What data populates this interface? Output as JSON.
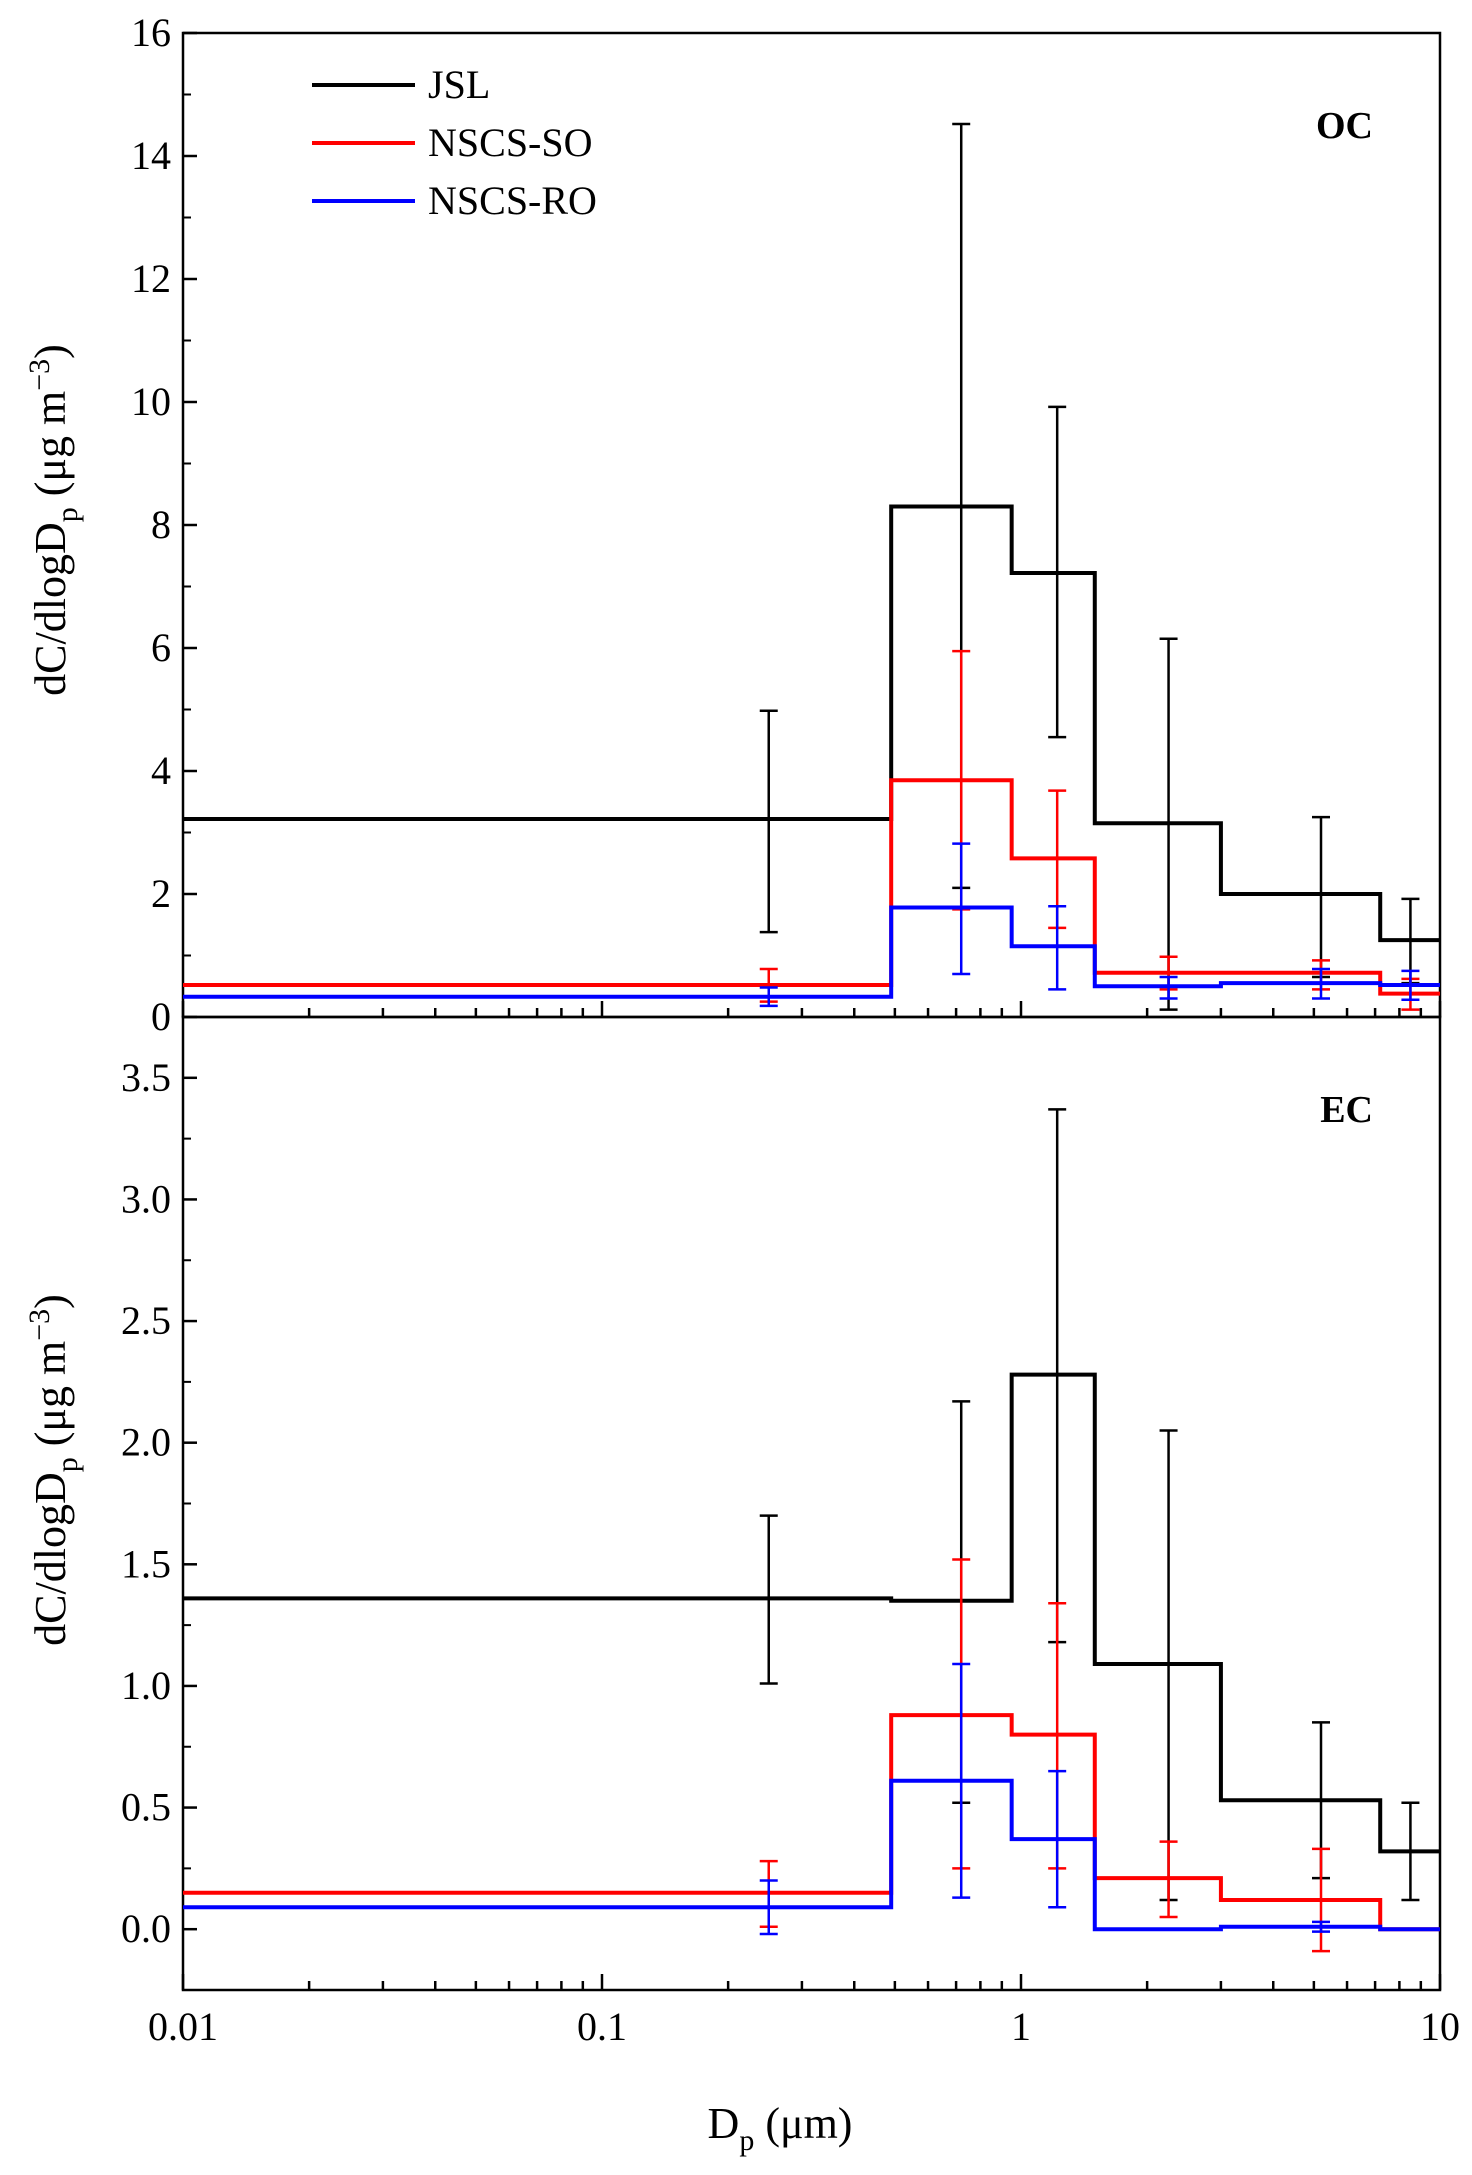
{
  "colors": {
    "JSL": "#000000",
    "NSCS-SO": "#ff0000",
    "NSCS-RO": "#0000ff"
  },
  "legend": [
    "JSL",
    "NSCS-SO",
    "NSCS-RO"
  ],
  "x_axis": {
    "ticks": [
      0.01,
      0.1,
      1,
      10
    ],
    "tick_labels": [
      "0.01",
      "0.1",
      "1",
      "10"
    ],
    "label_main": "D",
    "label_sub": "p",
    "label_rest": " (μm)"
  },
  "y_label": {
    "main": "dC/dlogD",
    "sub": "p",
    "unit_open": " (μg m",
    "unit_sup": "−3",
    "unit_close": ")"
  },
  "chart_data": [
    {
      "type": "line",
      "step": true,
      "title": "OC",
      "xlabel": "Dp (μm)",
      "ylabel": "dC/dlogDp (μg m−3)",
      "xscale": "log",
      "xlim": [
        0.01,
        10
      ],
      "ylim": [
        0,
        16
      ],
      "yticks": [
        0,
        2,
        4,
        6,
        8,
        10,
        12,
        14,
        16
      ],
      "ytick_labels": [
        "0",
        "2",
        "4",
        "6",
        "8",
        "10",
        "12",
        "14",
        "16"
      ],
      "bin_edges": [
        0.01,
        0.49,
        0.95,
        1.5,
        3.0,
        7.2,
        10
      ],
      "error_x": [
        0.25,
        0.72,
        1.22,
        2.25,
        5.2,
        8.5
      ],
      "series": [
        {
          "name": "JSL",
          "values": [
            3.22,
            8.3,
            7.22,
            3.15,
            2.0,
            1.25
          ],
          "err_low": [
            1.38,
            2.1,
            4.55,
            0.12,
            0.65,
            0.55
          ],
          "err_high": [
            4.98,
            14.52,
            9.92,
            6.15,
            3.25,
            1.92
          ]
        },
        {
          "name": "NSCS-SO",
          "values": [
            0.52,
            3.85,
            2.58,
            0.72,
            0.72,
            0.38
          ],
          "err_low": [
            0.25,
            1.75,
            1.45,
            0.45,
            0.45,
            0.12
          ],
          "err_high": [
            0.78,
            5.95,
            3.68,
            0.98,
            0.92,
            0.62
          ]
        },
        {
          "name": "NSCS-RO",
          "values": [
            0.33,
            1.78,
            1.15,
            0.5,
            0.55,
            0.52
          ],
          "err_low": [
            0.18,
            0.7,
            0.45,
            0.3,
            0.3,
            0.28
          ],
          "err_high": [
            0.48,
            2.82,
            1.8,
            0.65,
            0.78,
            0.75
          ]
        }
      ]
    },
    {
      "type": "line",
      "step": true,
      "title": "EC",
      "xlabel": "Dp (μm)",
      "ylabel": "dC/dlogDp (μg m−3)",
      "xscale": "log",
      "xlim": [
        0.01,
        10
      ],
      "ylim": [
        -0.25,
        3.75
      ],
      "yticks": [
        0.0,
        0.5,
        1.0,
        1.5,
        2.0,
        2.5,
        3.0,
        3.5
      ],
      "ytick_labels": [
        "0.0",
        "0.5",
        "1.0",
        "1.5",
        "2.0",
        "2.5",
        "3.0",
        "3.5"
      ],
      "bin_edges": [
        0.01,
        0.49,
        0.95,
        1.5,
        3.0,
        7.2,
        10
      ],
      "error_x": [
        0.25,
        0.72,
        1.22,
        2.25,
        5.2,
        8.5
      ],
      "series": [
        {
          "name": "JSL",
          "values": [
            1.36,
            1.35,
            2.28,
            1.09,
            0.53,
            0.32
          ],
          "err_low": [
            1.01,
            0.52,
            1.18,
            0.12,
            0.21,
            0.12
          ],
          "err_high": [
            1.7,
            2.17,
            3.37,
            2.05,
            0.85,
            0.52
          ]
        },
        {
          "name": "NSCS-SO",
          "values": [
            0.15,
            0.88,
            0.8,
            0.21,
            0.12,
            0.0
          ],
          "err_low": [
            0.01,
            0.25,
            0.25,
            0.05,
            -0.09,
            0.0
          ],
          "err_high": [
            0.28,
            1.52,
            1.34,
            0.36,
            0.33,
            0.0
          ]
        },
        {
          "name": "NSCS-RO",
          "values": [
            0.09,
            0.61,
            0.37,
            0.0,
            0.01,
            0.0
          ],
          "err_low": [
            -0.02,
            0.13,
            0.09,
            0.0,
            -0.01,
            0.0
          ],
          "err_high": [
            0.2,
            1.09,
            0.65,
            0.0,
            0.03,
            0.0
          ]
        }
      ]
    }
  ]
}
